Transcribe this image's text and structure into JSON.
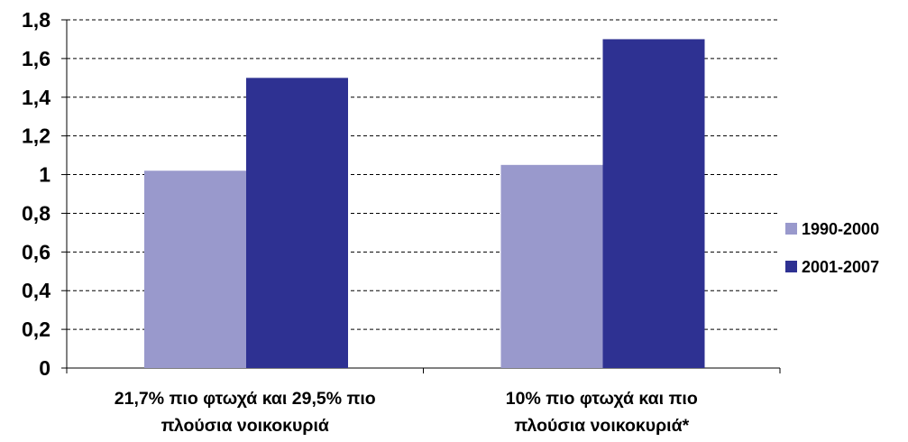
{
  "chart_data": {
    "type": "bar",
    "categories": [
      [
        "21,7% πιο φτωχά και 29,5% πιο",
        "πλούσια νοικοκυριά"
      ],
      [
        "10% πιο φτωχά και πιο",
        "πλούσια νοικοκυριά*"
      ]
    ],
    "series": [
      {
        "name": "1990-2000",
        "color": "#9999cc",
        "values": [
          1.02,
          1.05
        ]
      },
      {
        "name": "2001-2007",
        "color": "#2e3192",
        "values": [
          1.5,
          1.7
        ]
      }
    ],
    "ylim": [
      0,
      1.8
    ],
    "yticks": [
      {
        "value": 0,
        "label": "0"
      },
      {
        "value": 0.2,
        "label": "0,2"
      },
      {
        "value": 0.4,
        "label": "0,4"
      },
      {
        "value": 0.6,
        "label": "0,6"
      },
      {
        "value": 0.8,
        "label": "0,8"
      },
      {
        "value": 1.0,
        "label": "1"
      },
      {
        "value": 1.2,
        "label": "1,2"
      },
      {
        "value": 1.4,
        "label": "1,4"
      },
      {
        "value": 1.6,
        "label": "1,6"
      },
      {
        "value": 1.8,
        "label": "1,8"
      }
    ],
    "grid": true,
    "grid_style": "dashed",
    "legend_position": "right",
    "title": "",
    "xlabel": "",
    "ylabel": ""
  }
}
